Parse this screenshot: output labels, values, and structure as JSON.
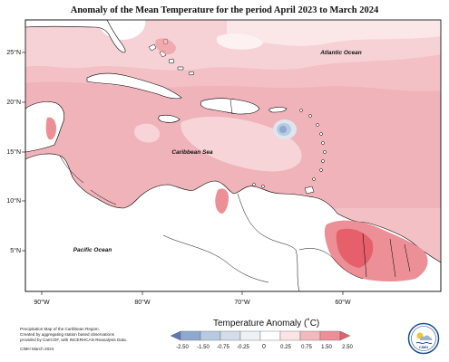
{
  "title": "Anomaly of the Mean Temperature for the period April 2023 to March 2024",
  "labels": {
    "atlantic": "Atlantic Ocean",
    "caribbean": "Caribbean Sea",
    "pacific": "Pacific Ocean"
  },
  "axes": {
    "lat_ticks": [
      "25°N",
      "20°N",
      "15°N",
      "10°N",
      "5°N"
    ],
    "lon_ticks": [
      "90°W",
      "80°W",
      "70°W",
      "60°W"
    ]
  },
  "legend": {
    "title": "Temperature Anomaly (˚C)",
    "ticks": [
      "-2.50",
      "-1.50",
      "-0.75",
      "-0.25",
      "0",
      "0.25",
      "0.75",
      "1.50",
      "2.50"
    ],
    "colors": [
      "#5b78b4",
      "#8fa8d0",
      "#b8cae0",
      "#dde6ef",
      "#ffffff",
      "#fbe4e6",
      "#f3b9be",
      "#ec8f96",
      "#e5606b"
    ]
  },
  "footnote": {
    "line1": "Precipitation Map of the Caribbean Region.",
    "line2": "Created by aggregating station based observations",
    "line3": "provided by CariCOF, with INCERHCAN Reanalysis Data.",
    "date": "CIMH March 2024"
  },
  "logo": {
    "text": "CIMH"
  }
}
